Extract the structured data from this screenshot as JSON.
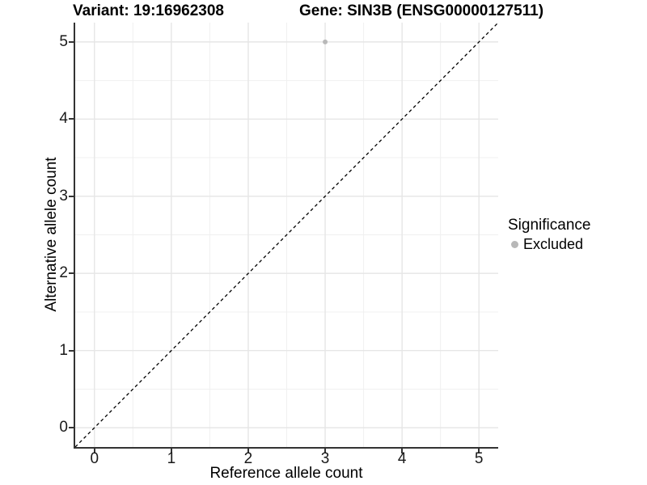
{
  "header": {
    "variant_title": "Variant: 19:16962308",
    "gene_title": "Gene: SIN3B (ENSG00000127511)"
  },
  "legend": {
    "title": "Significance",
    "items": [
      {
        "label": "Excluded",
        "color": "#b8b8b8",
        "marker": "circle-icon"
      }
    ]
  },
  "chart_data": {
    "type": "scatter",
    "title": "Variant: 19:16962308    Gene: SIN3B (ENSG00000127511)",
    "xlabel": "Reference allele count",
    "ylabel": "Alternative allele count",
    "xlim": [
      -0.25,
      5.25
    ],
    "ylim": [
      -0.25,
      5.25
    ],
    "x_ticks": [
      0,
      1,
      2,
      3,
      4,
      5
    ],
    "y_ticks": [
      0,
      1,
      2,
      3,
      4,
      5
    ],
    "x_minor_ticks": [
      0.5,
      1.5,
      2.5,
      3.5,
      4.5
    ],
    "y_minor_ticks": [
      0.5,
      1.5,
      2.5,
      3.5,
      4.5
    ],
    "grid": "major+minor",
    "legend_position": "right-middle",
    "reference_line": {
      "kind": "identity y=x",
      "style": "dashed",
      "color": "#000000"
    },
    "series": [
      {
        "name": "Excluded",
        "color": "#b8b8b8",
        "points": [
          {
            "x": 3,
            "y": 5
          }
        ]
      }
    ],
    "colors": {
      "grid_major": "#e6e6e6",
      "grid_minor": "#f0f0f0",
      "axis": "#333333",
      "point": "#b8b8b8"
    }
  }
}
